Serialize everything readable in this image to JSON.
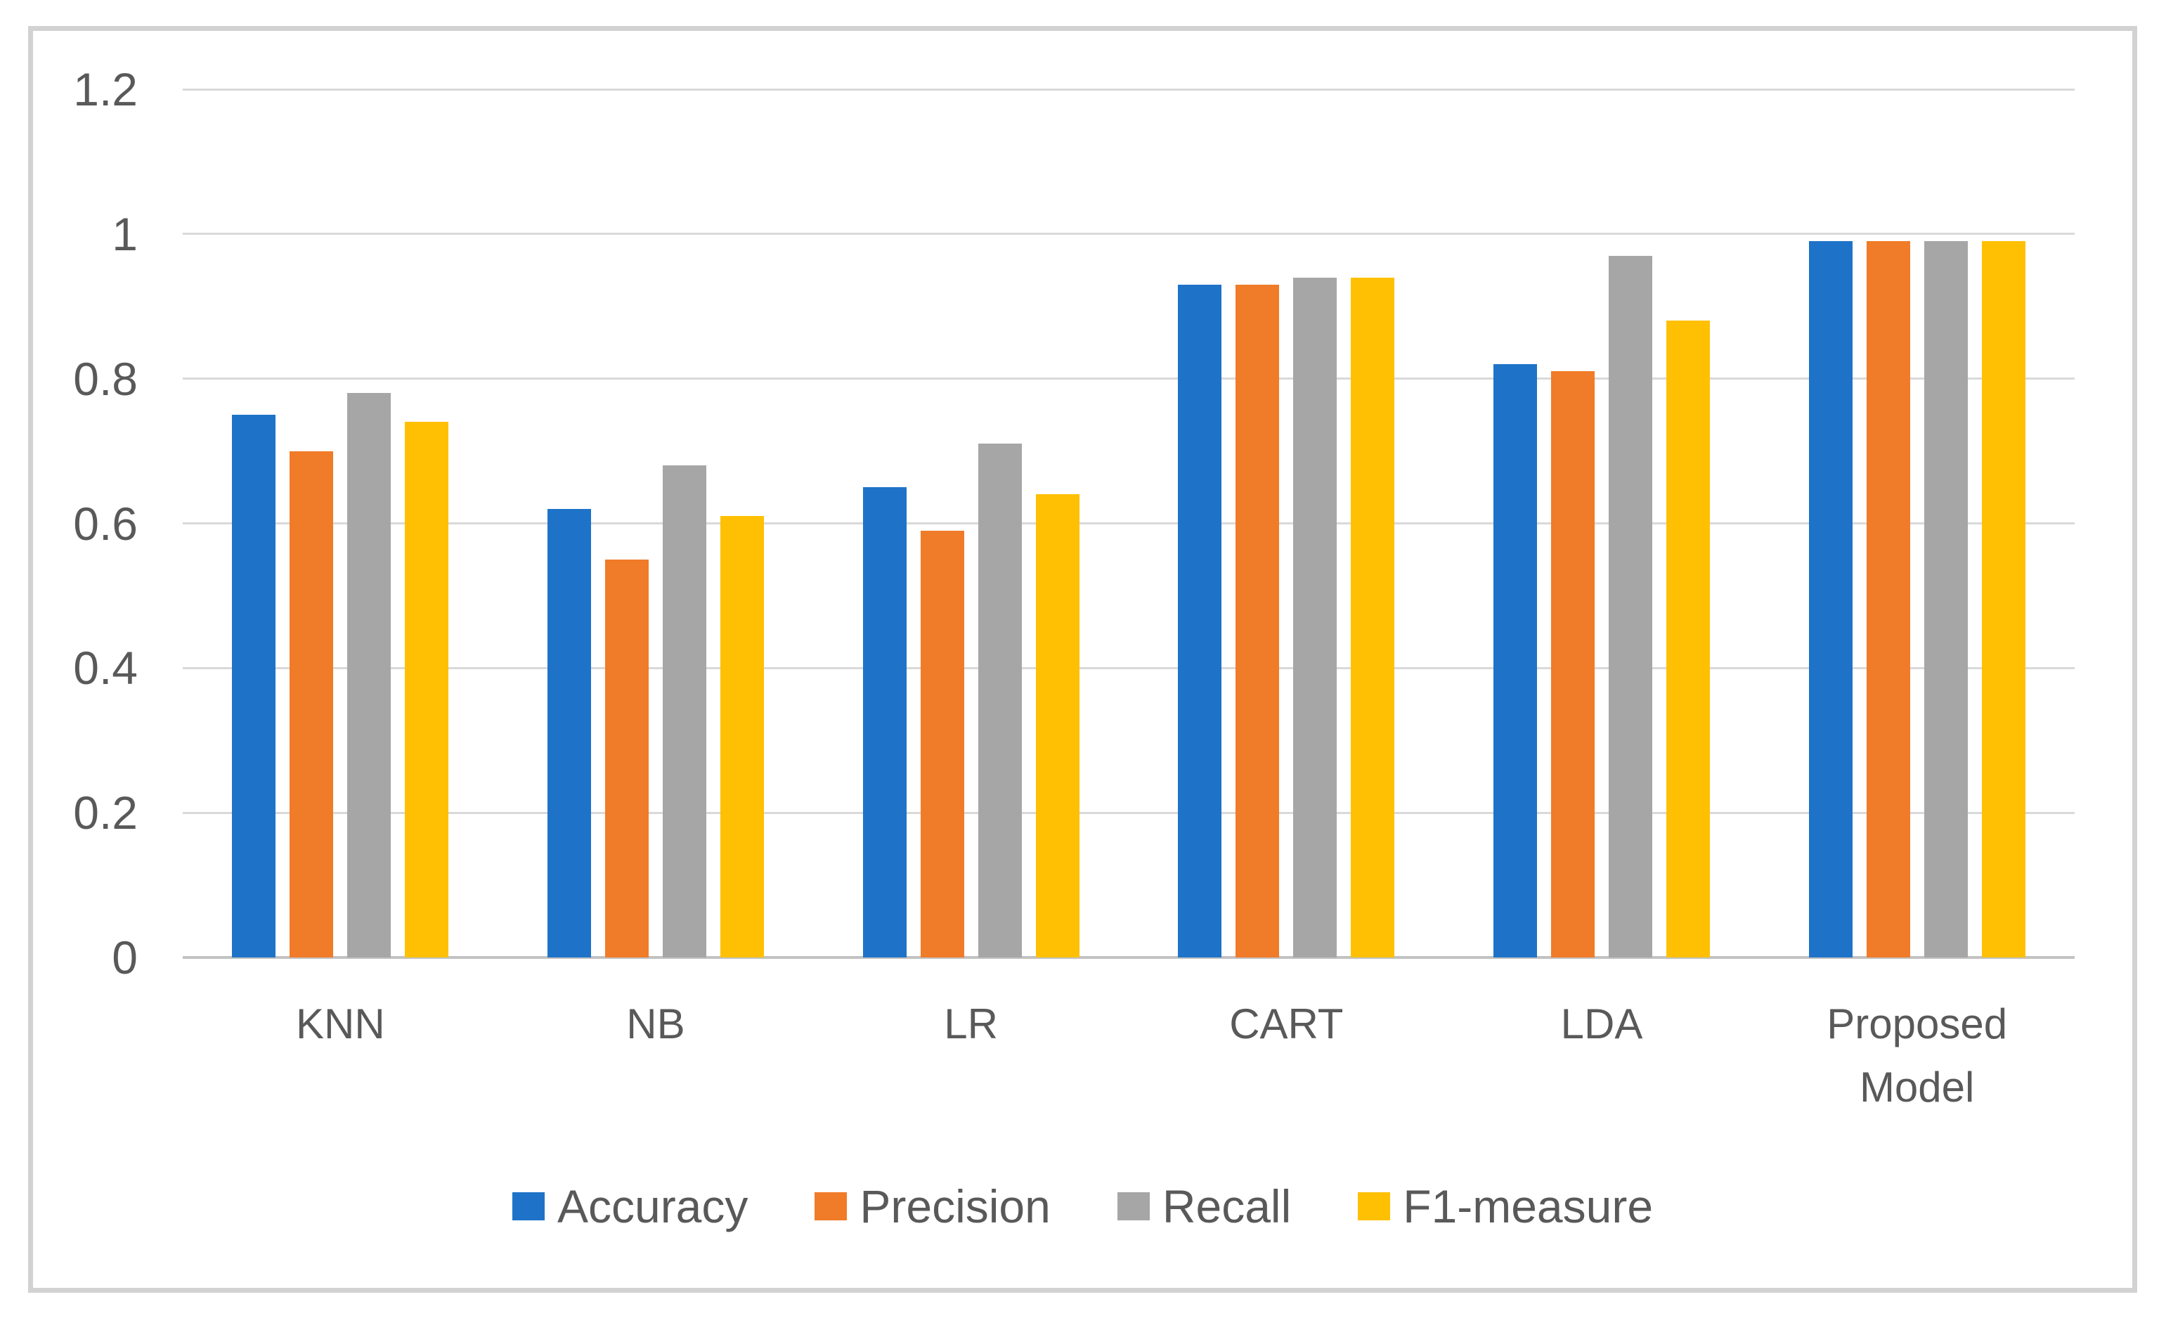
{
  "figure": {
    "title": ""
  },
  "styles": {
    "background": "#FFFFFF",
    "frame_border_color": "#D2D2D2",
    "gridline_color": "#D9D9D9",
    "axis_line_color": "#C2C2C2",
    "text_color": "#595959"
  },
  "chart_data": {
    "type": "bar",
    "title": "",
    "xlabel": "",
    "ylabel": "",
    "categories": [
      "KNN",
      "NB",
      "LR",
      "CART",
      "LDA",
      "Proposed Model"
    ],
    "xtick_labels": [
      "KNN",
      "NB",
      "LR",
      "CART",
      "LDA",
      "Proposed\nModel"
    ],
    "series": [
      {
        "name": "Accuracy",
        "color": "#1E73C8",
        "values": [
          0.75,
          0.62,
          0.65,
          0.93,
          0.82,
          0.99
        ]
      },
      {
        "name": "Precision",
        "color": "#F07B28",
        "values": [
          0.7,
          0.55,
          0.59,
          0.93,
          0.81,
          0.99
        ]
      },
      {
        "name": "Recall",
        "color": "#A6A6A6",
        "values": [
          0.78,
          0.68,
          0.71,
          0.94,
          0.97,
          0.99
        ]
      },
      {
        "name": "F1-measure",
        "color": "#FFC003",
        "values": [
          0.74,
          0.61,
          0.64,
          0.94,
          0.88,
          0.99
        ]
      }
    ],
    "ylim": [
      0,
      1.2
    ],
    "yticks": [
      {
        "value": 0,
        "label": "0"
      },
      {
        "value": 0.2,
        "label": "0.2"
      },
      {
        "value": 0.4,
        "label": "0.4"
      },
      {
        "value": 0.6,
        "label": "0.6"
      },
      {
        "value": 0.8,
        "label": "0.8"
      },
      {
        "value": 1,
        "label": "1"
      },
      {
        "value": 1.2,
        "label": "1.2"
      }
    ],
    "grid": "horizontal",
    "legend_position": "bottom"
  }
}
